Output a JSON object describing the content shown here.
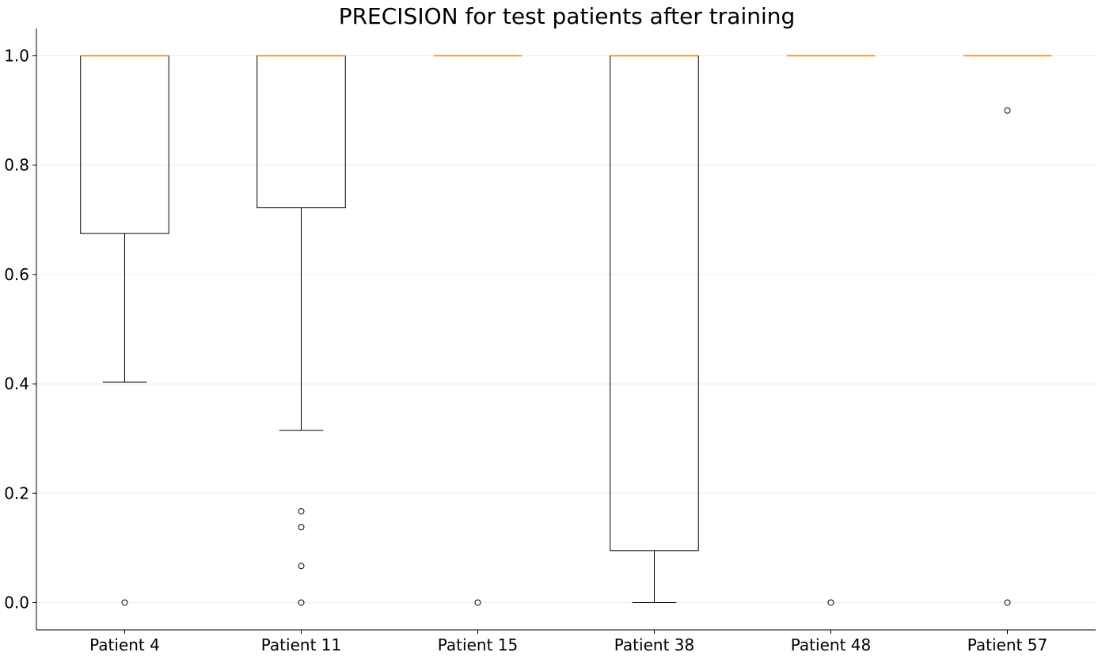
{
  "chart_data": {
    "type": "box",
    "title": "PRECISION for test patients after training",
    "xlabel": "",
    "ylabel": "",
    "ylim": [
      -0.05,
      1.05
    ],
    "yticks": [
      0.0,
      0.2,
      0.4,
      0.6,
      0.8,
      1.0
    ],
    "ytick_labels": [
      "0.0",
      "0.2",
      "0.4",
      "0.6",
      "0.8",
      "1.0"
    ],
    "grid": "horizontal",
    "categories": [
      "Patient 4",
      "Patient 11",
      "Patient 15",
      "Patient 38",
      "Patient 48",
      "Patient 57"
    ],
    "boxes": [
      {
        "category": "Patient 4",
        "whisker_low": 0.403,
        "q1": 0.675,
        "median": 1.0,
        "q3": 1.0,
        "whisker_high": 1.0,
        "outliers": [
          0.0
        ]
      },
      {
        "category": "Patient 11",
        "whisker_low": 0.315,
        "q1": 0.722,
        "median": 1.0,
        "q3": 1.0,
        "whisker_high": 1.0,
        "outliers": [
          0.167,
          0.138,
          0.067,
          0.0
        ]
      },
      {
        "category": "Patient 15",
        "whisker_low": 1.0,
        "q1": 1.0,
        "median": 1.0,
        "q3": 1.0,
        "whisker_high": 1.0,
        "outliers": [
          0.0
        ]
      },
      {
        "category": "Patient 38",
        "whisker_low": 0.0,
        "q1": 0.095,
        "median": 1.0,
        "q3": 1.0,
        "whisker_high": 1.0,
        "outliers": []
      },
      {
        "category": "Patient 48",
        "whisker_low": 1.0,
        "q1": 1.0,
        "median": 1.0,
        "q3": 1.0,
        "whisker_high": 1.0,
        "outliers": [
          0.0
        ]
      },
      {
        "category": "Patient 57",
        "whisker_low": 1.0,
        "q1": 1.0,
        "median": 1.0,
        "q3": 1.0,
        "whisker_high": 1.0,
        "outliers": [
          0.9,
          0.0
        ]
      }
    ],
    "colors": {
      "box": "#000000",
      "median": "#ff7f0e",
      "grid": "#eeeeee"
    }
  }
}
